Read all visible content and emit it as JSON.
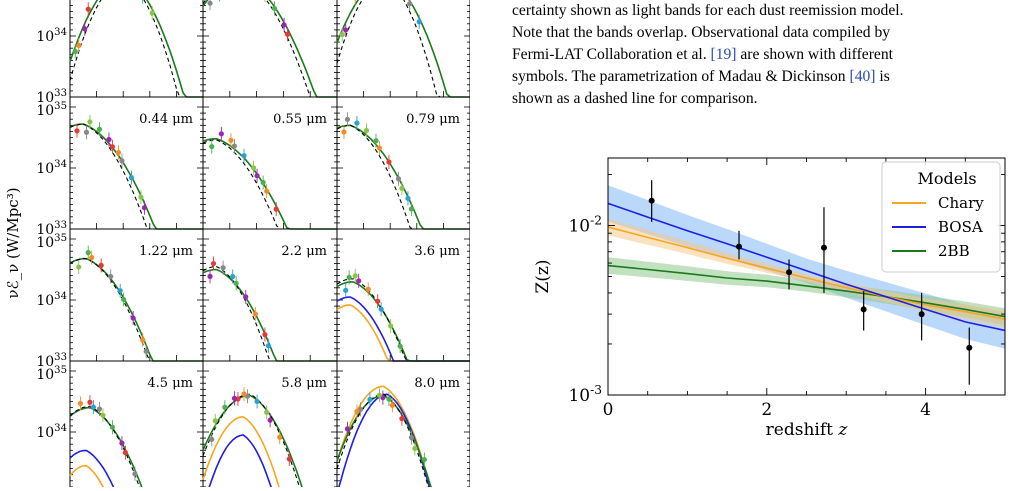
{
  "caption": {
    "lines": [
      "certainty shown as light bands for each dust reemission model.",
      "Note that the bands overlap. Observational data compiled by",
      "Fermi-LAT Collaboration et al. [19] are shown with different",
      "symbols. The parametrization of Madau & Dickinson [40] is",
      "shown as a dashed line for comparison."
    ],
    "ref_1": "[19]",
    "ref_2": "[40]"
  },
  "colors": {
    "chary": "#f5a623",
    "bosa": "#1f1fe0",
    "twobb": "#1a7a1a",
    "axis": "#000000",
    "band_bosa": "#7fb8f5",
    "band_chary": "#f5c98a",
    "band_2bb": "#8ec98e"
  },
  "chart_data": [
    {
      "type": "line",
      "ylabel": "νℰ_ν (W/Mpc³)",
      "yscale": "log",
      "ylim": [
        1e+33,
        1e+35
      ],
      "ytick_labels": [
        "10^33",
        "10^34",
        "10^35"
      ],
      "panels": [
        {
          "label": ""
        },
        {
          "label": ""
        },
        {
          "label": ""
        },
        {
          "label": "0.44 μm"
        },
        {
          "label": "0.55 μm"
        },
        {
          "label": "0.79 μm"
        },
        {
          "label": "1.22 μm"
        },
        {
          "label": "2.2 μm"
        },
        {
          "label": "3.6 μm"
        },
        {
          "label": "4.5 μm"
        },
        {
          "label": "5.8 μm"
        },
        {
          "label": "8.0 μm"
        }
      ]
    },
    {
      "type": "line",
      "xlabel": "redshift z",
      "ylabel": "Z(z)",
      "yscale": "log",
      "xlim": [
        0,
        5
      ],
      "ylim": [
        0.001,
        0.025
      ],
      "xticks": [
        0,
        2,
        4
      ],
      "ytick_labels": [
        "10^-3",
        "10^-2"
      ],
      "legend": {
        "title": "Models",
        "placement": "top-right"
      },
      "series": [
        {
          "name": "Chary",
          "x": [
            0,
            0.5,
            1,
            1.5,
            2,
            2.5,
            3,
            3.5,
            4,
            4.5,
            5
          ],
          "y": [
            0.0098,
            0.0085,
            0.0074,
            0.0064,
            0.0056,
            0.0049,
            0.0043,
            0.0038,
            0.0034,
            0.0031,
            0.0028
          ]
        },
        {
          "name": "BOSA",
          "x": [
            0,
            0.5,
            1,
            1.5,
            2,
            2.5,
            3,
            3.5,
            4,
            4.5,
            5
          ],
          "y": [
            0.0135,
            0.0112,
            0.0093,
            0.0078,
            0.0065,
            0.0054,
            0.0045,
            0.0038,
            0.0032,
            0.0027,
            0.0024
          ]
        },
        {
          "name": "2BB",
          "x": [
            0,
            0.5,
            1,
            1.5,
            2,
            2.5,
            3,
            3.5,
            4,
            4.5,
            5
          ],
          "y": [
            0.0058,
            0.0055,
            0.0052,
            0.0049,
            0.0047,
            0.0044,
            0.0041,
            0.0038,
            0.0035,
            0.0032,
            0.0029
          ]
        }
      ],
      "observations": [
        {
          "x": 0.55,
          "y": 0.014,
          "lo": 0.0105,
          "hi": 0.0185
        },
        {
          "x": 1.65,
          "y": 0.0075,
          "lo": 0.0063,
          "hi": 0.0093
        },
        {
          "x": 2.28,
          "y": 0.0053,
          "lo": 0.0042,
          "hi": 0.0063
        },
        {
          "x": 2.72,
          "y": 0.0074,
          "lo": 0.004,
          "hi": 0.0128
        },
        {
          "x": 3.22,
          "y": 0.0032,
          "lo": 0.0024,
          "hi": 0.0041
        },
        {
          "x": 3.95,
          "y": 0.003,
          "lo": 0.0021,
          "hi": 0.004
        },
        {
          "x": 4.55,
          "y": 0.0019,
          "lo": 0.00115,
          "hi": 0.0025
        }
      ]
    }
  ]
}
